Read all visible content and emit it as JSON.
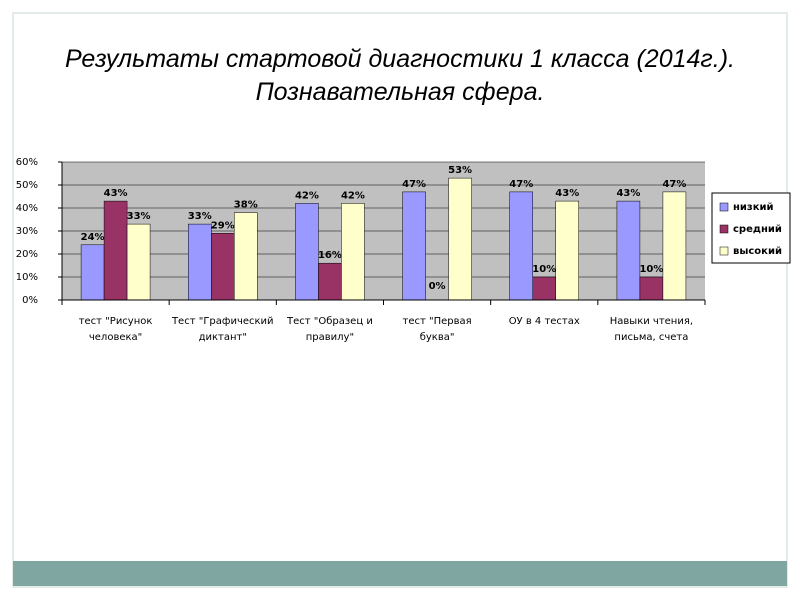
{
  "chart_data": {
    "type": "bar",
    "title": "Результаты стартовой диагностики 1 класса (2014г.).",
    "subtitle": "Познавательная сфера.",
    "categories": [
      "тест \"Рисунок человека\"",
      "Тест \"Графический диктант\"",
      "Тест \"Образец и правилу\"",
      "тест \"Первая буква\"",
      "ОУ в 4 тестах",
      "Навыки чтения, письма, счета"
    ],
    "series": [
      {
        "name": "низкий",
        "color": "#9999ff",
        "values": [
          24,
          33,
          42,
          47,
          47,
          43
        ],
        "value_labels": [
          "24%",
          "33%",
          "42%",
          "47%",
          "47%",
          "43%"
        ]
      },
      {
        "name": "средний",
        "color": "#993366",
        "values": [
          43,
          29,
          16,
          0,
          10,
          10
        ],
        "value_labels": [
          "43%",
          "29%",
          "16%",
          "0%",
          "10%",
          "10%"
        ]
      },
      {
        "name": "высокий",
        "color": "#ffffcc",
        "values": [
          33,
          38,
          42,
          53,
          43,
          47
        ],
        "value_labels": [
          "33%",
          "38%",
          "42%",
          "53%",
          "43%",
          "47%"
        ]
      }
    ],
    "ylim": [
      0,
      60
    ],
    "yticks": [
      {
        "value": 0,
        "label": "0%"
      },
      {
        "value": 10,
        "label": "10%"
      },
      {
        "value": 20,
        "label": "20%"
      },
      {
        "value": 30,
        "label": "30%"
      },
      {
        "value": 40,
        "label": "40%"
      },
      {
        "value": 50,
        "label": "50%"
      },
      {
        "value": 60,
        "label": "60%"
      }
    ],
    "grid": true,
    "legend": "right"
  }
}
